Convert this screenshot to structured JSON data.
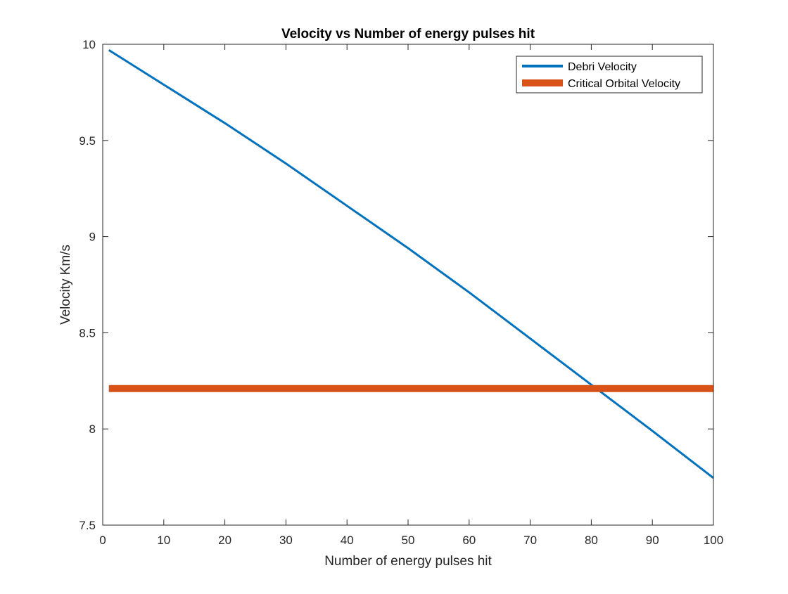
{
  "chart_data": {
    "type": "line",
    "title": "Velocity vs Number of energy pulses hit",
    "xlabel": "Number of energy pulses hit",
    "ylabel": "Velocity Km/s",
    "xlim": [
      0,
      100
    ],
    "ylim": [
      7.5,
      10
    ],
    "xticks": [
      0,
      10,
      20,
      30,
      40,
      50,
      60,
      70,
      80,
      90,
      100
    ],
    "yticks": [
      7.5,
      8,
      8.5,
      9,
      9.5,
      10
    ],
    "xtick_labels": [
      "0",
      "10",
      "20",
      "30",
      "40",
      "50",
      "60",
      "70",
      "80",
      "90",
      "100"
    ],
    "ytick_labels": [
      "7.5",
      "8",
      "8.5",
      "9",
      "9.5",
      "10"
    ],
    "grid": false,
    "legend_position": "top-right",
    "series": [
      {
        "name": "Debri Velocity",
        "color": "#0072BD",
        "x": [
          1,
          10,
          20,
          30,
          40,
          50,
          60,
          70,
          80,
          90,
          100
        ],
        "y": [
          9.97,
          9.79,
          9.59,
          9.38,
          9.16,
          8.94,
          8.71,
          8.47,
          8.23,
          7.99,
          7.745
        ]
      },
      {
        "name": "Critical Orbital Velocity",
        "color": "#D95319",
        "x": [
          1,
          100
        ],
        "y": [
          8.21,
          8.21
        ]
      }
    ]
  }
}
